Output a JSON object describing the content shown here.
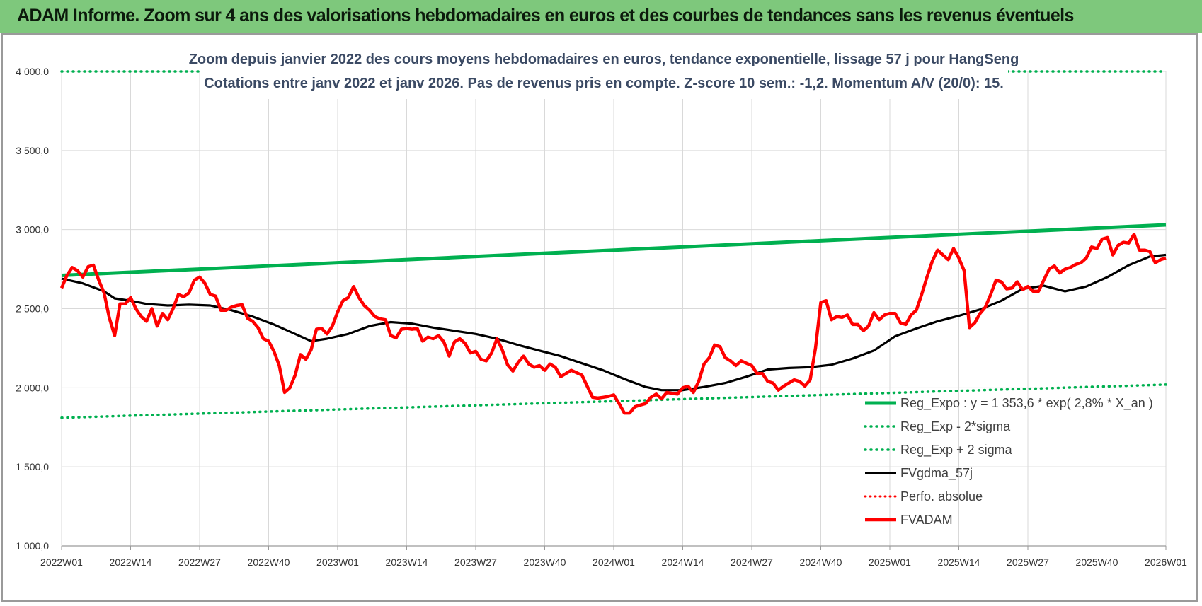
{
  "banner": {
    "title": "ADAM Informe. Zoom sur 4 ans des valorisations hebdomadaires en euros et des courbes de tendances sans les revenus éventuels"
  },
  "colors": {
    "banner": "#7ec87c",
    "trend": "#00b050",
    "sigma": "#00b050",
    "smooth": "#000000",
    "perf": "#ff0000",
    "price": "#ff0000",
    "grid": "#d9d9d9"
  },
  "chart_data": {
    "type": "line",
    "title": "Zoom depuis janvier 2022 des cours moyens hebdomadaires en euros, tendance exponentielle, lissage 57 j pour HangSeng",
    "subtitle": "Cotations entre janv 2022 et janv 2026. Pas de revenus pris en compte. Z-score 10 sem.: -1,2. Momentum A/V (20/0): 15.",
    "xlabel": "",
    "ylabel": "",
    "ylim": [
      1000,
      4000
    ],
    "y_ticks": [
      "1 000,0",
      "1 500,0",
      "2 000,0",
      "2 500,0",
      "3 000,0",
      "3 500,0",
      "4 000,0"
    ],
    "x_ticks": [
      "2022W01",
      "2022W14",
      "2022W27",
      "2022W40",
      "2023W01",
      "2023W14",
      "2023W27",
      "2023W40",
      "2024W01",
      "2024W14",
      "2024W27",
      "2024W40",
      "2025W01",
      "2025W14",
      "2025W27",
      "2025W40",
      "2026W01"
    ],
    "grid": true,
    "legend_position": "bottom-right",
    "series": [
      {
        "name": "Reg_Expo : y = 1 353,6 * exp( 2,8% *  X_an )",
        "style": "solid-thick",
        "points": [
          [
            0,
            2710
          ],
          [
            208,
            3030
          ]
        ]
      },
      {
        "name": "Reg_Exp - 2*sigma",
        "style": "dotted",
        "points": [
          [
            0,
            1810
          ],
          [
            208,
            2020
          ]
        ]
      },
      {
        "name": "Reg_Exp + 2 sigma",
        "style": "dotted",
        "points": [
          [
            0,
            4000
          ],
          [
            208,
            4000
          ]
        ]
      },
      {
        "name": "FVgdma_57j",
        "style": "solid",
        "points": [
          [
            0,
            2690
          ],
          [
            4,
            2660
          ],
          [
            8,
            2610
          ],
          [
            10,
            2565
          ],
          [
            13,
            2550
          ],
          [
            16,
            2530
          ],
          [
            20,
            2520
          ],
          [
            24,
            2525
          ],
          [
            28,
            2520
          ],
          [
            32,
            2490
          ],
          [
            36,
            2450
          ],
          [
            40,
            2400
          ],
          [
            44,
            2340
          ],
          [
            47,
            2295
          ],
          [
            50,
            2310
          ],
          [
            54,
            2340
          ],
          [
            58,
            2390
          ],
          [
            62,
            2415
          ],
          [
            66,
            2405
          ],
          [
            70,
            2380
          ],
          [
            74,
            2360
          ],
          [
            78,
            2340
          ],
          [
            82,
            2310
          ],
          [
            86,
            2270
          ],
          [
            90,
            2235
          ],
          [
            94,
            2200
          ],
          [
            98,
            2155
          ],
          [
            102,
            2110
          ],
          [
            106,
            2055
          ],
          [
            110,
            2005
          ],
          [
            113,
            1985
          ],
          [
            117,
            1985
          ],
          [
            121,
            2005
          ],
          [
            125,
            2030
          ],
          [
            129,
            2070
          ],
          [
            133,
            2115
          ],
          [
            137,
            2125
          ],
          [
            141,
            2130
          ],
          [
            145,
            2145
          ],
          [
            149,
            2185
          ],
          [
            153,
            2235
          ],
          [
            157,
            2325
          ],
          [
            161,
            2375
          ],
          [
            165,
            2420
          ],
          [
            169,
            2455
          ],
          [
            173,
            2495
          ],
          [
            177,
            2550
          ],
          [
            181,
            2625
          ],
          [
            185,
            2645
          ],
          [
            189,
            2610
          ],
          [
            193,
            2640
          ],
          [
            197,
            2700
          ],
          [
            201,
            2775
          ],
          [
            205,
            2830
          ],
          [
            208,
            2840
          ]
        ]
      },
      {
        "name": "Perfo. absolue",
        "style": "dotted",
        "points": []
      },
      {
        "name": "FVADAM",
        "style": "solid-thick",
        "points": [
          [
            0,
            2630
          ],
          [
            1,
            2710
          ],
          [
            2,
            2760
          ],
          [
            3,
            2740
          ],
          [
            4,
            2700
          ],
          [
            5,
            2765
          ],
          [
            6,
            2775
          ],
          [
            7,
            2680
          ],
          [
            8,
            2600
          ],
          [
            9,
            2440
          ],
          [
            10,
            2330
          ],
          [
            11,
            2530
          ],
          [
            12,
            2530
          ],
          [
            13,
            2570
          ],
          [
            14,
            2500
          ],
          [
            15,
            2450
          ],
          [
            16,
            2420
          ],
          [
            17,
            2500
          ],
          [
            18,
            2390
          ],
          [
            19,
            2470
          ],
          [
            20,
            2430
          ],
          [
            21,
            2500
          ],
          [
            22,
            2590
          ],
          [
            23,
            2575
          ],
          [
            24,
            2600
          ],
          [
            25,
            2680
          ],
          [
            26,
            2700
          ],
          [
            27,
            2660
          ],
          [
            28,
            2590
          ],
          [
            29,
            2580
          ],
          [
            30,
            2490
          ],
          [
            31,
            2490
          ],
          [
            32,
            2510
          ],
          [
            33,
            2520
          ],
          [
            34,
            2525
          ],
          [
            35,
            2440
          ],
          [
            36,
            2420
          ],
          [
            37,
            2380
          ],
          [
            38,
            2310
          ],
          [
            39,
            2295
          ],
          [
            40,
            2230
          ],
          [
            41,
            2140
          ],
          [
            42,
            1970
          ],
          [
            43,
            2000
          ],
          [
            44,
            2080
          ],
          [
            45,
            2210
          ],
          [
            46,
            2180
          ],
          [
            47,
            2240
          ],
          [
            48,
            2370
          ],
          [
            49,
            2375
          ],
          [
            50,
            2340
          ],
          [
            51,
            2390
          ],
          [
            52,
            2480
          ],
          [
            53,
            2550
          ],
          [
            54,
            2570
          ],
          [
            55,
            2640
          ],
          [
            56,
            2570
          ],
          [
            57,
            2520
          ],
          [
            58,
            2490
          ],
          [
            59,
            2450
          ],
          [
            60,
            2435
          ],
          [
            61,
            2430
          ],
          [
            62,
            2330
          ],
          [
            63,
            2315
          ],
          [
            64,
            2370
          ],
          [
            65,
            2375
          ],
          [
            66,
            2370
          ],
          [
            67,
            2375
          ],
          [
            68,
            2295
          ],
          [
            69,
            2320
          ],
          [
            70,
            2310
          ],
          [
            71,
            2330
          ],
          [
            72,
            2290
          ],
          [
            73,
            2200
          ],
          [
            74,
            2290
          ],
          [
            75,
            2310
          ],
          [
            76,
            2280
          ],
          [
            77,
            2220
          ],
          [
            78,
            2230
          ],
          [
            79,
            2180
          ],
          [
            80,
            2170
          ],
          [
            81,
            2220
          ],
          [
            82,
            2310
          ],
          [
            83,
            2240
          ],
          [
            84,
            2145
          ],
          [
            85,
            2105
          ],
          [
            86,
            2160
          ],
          [
            87,
            2200
          ],
          [
            88,
            2150
          ],
          [
            89,
            2130
          ],
          [
            90,
            2140
          ],
          [
            91,
            2110
          ],
          [
            92,
            2150
          ],
          [
            93,
            2130
          ],
          [
            94,
            2070
          ],
          [
            95,
            2090
          ],
          [
            96,
            2110
          ],
          [
            97,
            2095
          ],
          [
            98,
            2080
          ],
          [
            99,
            2010
          ],
          [
            100,
            1940
          ],
          [
            101,
            1935
          ],
          [
            102,
            1940
          ],
          [
            103,
            1945
          ],
          [
            104,
            1955
          ],
          [
            105,
            1900
          ],
          [
            106,
            1840
          ],
          [
            107,
            1840
          ],
          [
            108,
            1880
          ],
          [
            109,
            1890
          ],
          [
            110,
            1900
          ],
          [
            111,
            1940
          ],
          [
            112,
            1960
          ],
          [
            113,
            1930
          ],
          [
            114,
            1970
          ],
          [
            115,
            1965
          ],
          [
            116,
            1960
          ],
          [
            117,
            2000
          ],
          [
            118,
            2010
          ],
          [
            119,
            1970
          ],
          [
            120,
            2040
          ],
          [
            121,
            2150
          ],
          [
            122,
            2190
          ],
          [
            123,
            2270
          ],
          [
            124,
            2260
          ],
          [
            125,
            2190
          ],
          [
            126,
            2170
          ],
          [
            127,
            2140
          ],
          [
            128,
            2170
          ],
          [
            129,
            2155
          ],
          [
            130,
            2140
          ],
          [
            131,
            2090
          ],
          [
            132,
            2090
          ],
          [
            133,
            2040
          ],
          [
            134,
            2030
          ],
          [
            135,
            1985
          ],
          [
            136,
            2010
          ],
          [
            137,
            2030
          ],
          [
            138,
            2050
          ],
          [
            139,
            2040
          ],
          [
            140,
            2010
          ],
          [
            141,
            2050
          ],
          [
            142,
            2250
          ],
          [
            143,
            2540
          ],
          [
            144,
            2550
          ],
          [
            145,
            2430
          ],
          [
            146,
            2450
          ],
          [
            147,
            2445
          ],
          [
            148,
            2460
          ],
          [
            149,
            2400
          ],
          [
            150,
            2400
          ],
          [
            151,
            2360
          ],
          [
            152,
            2390
          ],
          [
            153,
            2475
          ],
          [
            154,
            2430
          ],
          [
            155,
            2460
          ],
          [
            156,
            2470
          ],
          [
            157,
            2470
          ],
          [
            158,
            2410
          ],
          [
            159,
            2400
          ],
          [
            160,
            2460
          ],
          [
            161,
            2490
          ],
          [
            162,
            2590
          ],
          [
            163,
            2700
          ],
          [
            164,
            2800
          ],
          [
            165,
            2870
          ],
          [
            166,
            2840
          ],
          [
            167,
            2810
          ],
          [
            168,
            2880
          ],
          [
            169,
            2820
          ],
          [
            170,
            2740
          ],
          [
            171,
            2380
          ],
          [
            172,
            2410
          ],
          [
            173,
            2470
          ],
          [
            174,
            2510
          ],
          [
            175,
            2590
          ],
          [
            176,
            2680
          ],
          [
            177,
            2670
          ],
          [
            178,
            2625
          ],
          [
            179,
            2630
          ],
          [
            180,
            2670
          ],
          [
            181,
            2620
          ],
          [
            182,
            2640
          ],
          [
            183,
            2610
          ],
          [
            184,
            2610
          ],
          [
            185,
            2680
          ],
          [
            186,
            2750
          ],
          [
            187,
            2770
          ],
          [
            188,
            2725
          ],
          [
            189,
            2750
          ],
          [
            190,
            2760
          ],
          [
            191,
            2780
          ],
          [
            192,
            2790
          ],
          [
            193,
            2820
          ],
          [
            194,
            2890
          ],
          [
            195,
            2880
          ],
          [
            196,
            2940
          ],
          [
            197,
            2950
          ],
          [
            198,
            2840
          ],
          [
            199,
            2900
          ],
          [
            200,
            2920
          ],
          [
            201,
            2915
          ],
          [
            202,
            2970
          ],
          [
            203,
            2870
          ],
          [
            204,
            2870
          ],
          [
            205,
            2860
          ],
          [
            206,
            2790
          ],
          [
            207,
            2810
          ],
          [
            208,
            2820
          ]
        ]
      }
    ]
  }
}
